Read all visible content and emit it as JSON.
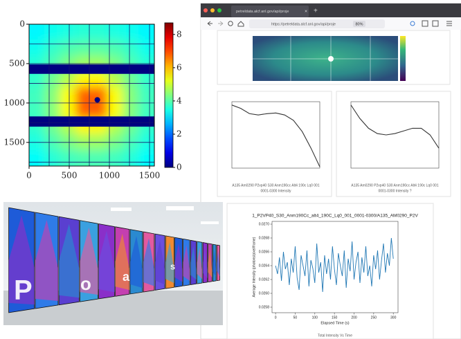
{
  "chart_data": [
    {
      "type": "heatmap",
      "colormap": "jet",
      "xlim": [
        0,
        1560
      ],
      "ylim": [
        0,
        1800
      ],
      "xticks": [
        0,
        500,
        1000,
        1500
      ],
      "yticks": [
        0,
        500,
        1000,
        1500
      ],
      "xgrid": [
        250,
        500,
        750,
        1000,
        1250,
        1500
      ],
      "ygrid": [
        250,
        500,
        750,
        1000,
        1250,
        1500,
        1750
      ],
      "z": [
        [
          3.2,
          3.4,
          3.5,
          3.6,
          3.6,
          3.5,
          3.4,
          3.2
        ],
        [
          3.4,
          3.7,
          3.9,
          4.0,
          4.0,
          3.9,
          3.7,
          3.4
        ],
        [
          3.6,
          3.9,
          4.3,
          4.6,
          4.6,
          4.3,
          3.9,
          3.6
        ],
        [
          3.7,
          4.2,
          4.8,
          5.5,
          5.5,
          4.8,
          4.2,
          3.7
        ],
        [
          3.8,
          4.4,
          5.4,
          6.8,
          6.8,
          5.4,
          4.4,
          3.8
        ],
        [
          3.8,
          4.4,
          5.4,
          6.8,
          6.8,
          5.4,
          4.4,
          3.8
        ],
        [
          3.7,
          4.2,
          4.8,
          5.5,
          5.5,
          4.8,
          4.2,
          3.7
        ],
        [
          3.5,
          3.9,
          4.3,
          4.6,
          4.6,
          4.3,
          3.9,
          3.5
        ],
        [
          3.3,
          3.6,
          3.8,
          3.9,
          3.9,
          3.8,
          3.6,
          3.3
        ]
      ],
      "mask_bands": [
        [
          510,
          630
        ],
        [
          1170,
          1300
        ]
      ],
      "mask_value": 0,
      "beam_stop": {
        "x": 850,
        "y": 960,
        "value": 0
      },
      "clim": [
        0,
        8.7
      ],
      "cticks": [
        0,
        2,
        4,
        6,
        8
      ]
    },
    {
      "type": "line",
      "color": "#333333",
      "x": [
        0,
        1,
        2,
        3,
        4,
        5,
        6,
        7,
        8,
        9,
        10
      ],
      "values": [
        0.95,
        0.9,
        0.82,
        0.8,
        0.82,
        0.83,
        0.8,
        0.72,
        0.55,
        0.3,
        0.02
      ],
      "xlim": [
        0,
        10
      ],
      "ylim": [
        0,
        1
      ],
      "caption": [
        "A135 Am0290 P2vp40 S30 Anm190cc Alt4 190c Lq0 001",
        "0001-0300 Intensity"
      ]
    },
    {
      "type": "line",
      "color": "#333333",
      "x": [
        0,
        1,
        2,
        3,
        4,
        5,
        6,
        7,
        8,
        9,
        10
      ],
      "values": [
        0.95,
        0.75,
        0.6,
        0.52,
        0.5,
        0.52,
        0.56,
        0.6,
        0.6,
        0.5,
        0.3
      ],
      "xlim": [
        0,
        10
      ],
      "ylim": [
        0,
        1
      ],
      "caption": [
        "A135 Am0290 P2vp40 S30 Anm190cc Alt4 190c Lq0 001",
        "0001-0300 Intensity ?"
      ]
    },
    {
      "type": "line",
      "color": "#1f77b4",
      "title": "1_P2VP40_S30_Anm190Cc_alt4_190C_Lq0_001_0001-0300/A135_AM0290_P2V",
      "xlabel": "Elapsed Time (s)",
      "ylabel": "Average Intensity (photons/pixel/frame)",
      "caption": "Total Intensity Vs Time",
      "x": [
        0,
        5,
        10,
        15,
        20,
        25,
        30,
        35,
        40,
        45,
        50,
        55,
        60,
        65,
        70,
        75,
        80,
        85,
        90,
        95,
        100,
        105,
        110,
        115,
        120,
        125,
        130,
        135,
        140,
        145,
        150,
        155,
        160,
        165,
        170,
        175,
        180,
        185,
        190,
        195,
        200,
        205,
        210,
        215,
        220,
        225,
        230,
        235,
        240,
        245,
        250,
        255,
        260,
        265,
        270,
        275,
        280,
        285,
        290,
        295,
        300
      ],
      "values": [
        0.0264,
        0.02628,
        0.02652,
        0.02618,
        0.0266,
        0.02635,
        0.02645,
        0.02612,
        0.0265,
        0.0263,
        0.02668,
        0.02622,
        0.02605,
        0.02655,
        0.0264,
        0.02625,
        0.02662,
        0.0261,
        0.02648,
        0.02636,
        0.02615,
        0.02672,
        0.0263,
        0.02645,
        0.02602,
        0.02655,
        0.02628,
        0.0265,
        0.0262,
        0.02668,
        0.02635,
        0.02612,
        0.02658,
        0.0264,
        0.02625,
        0.02662,
        0.02608,
        0.0265,
        0.02632,
        0.02675,
        0.0262,
        0.02645,
        0.0266,
        0.02615,
        0.02652,
        0.0263,
        0.02668,
        0.02625,
        0.0264,
        0.0261,
        0.02655,
        0.02635,
        0.02662,
        0.0262,
        0.02648,
        0.02672,
        0.0263,
        0.02658,
        0.0264,
        0.0268,
        0.0265
      ],
      "xlim": [
        -9,
        312
      ],
      "ylim": [
        0.02572,
        0.02704
      ],
      "xticks": [
        0,
        50,
        100,
        150,
        200,
        250,
        300
      ],
      "yticks": [
        0.0258,
        {
          "value": 0.026,
          "label": "0.0260"
        },
        0.0262,
        0.0264,
        0.0266,
        0.0268,
        {
          "value": 0.027,
          "label": "0.0270"
        }
      ]
    }
  ],
  "browser": {
    "tab": "petreldata.alcf.anl.gov/api/proje",
    "url": "https://petreldata.alcf.anl.gov/api/proje",
    "zoom": "80%"
  },
  "photo": {
    "letters": [
      "P",
      "o",
      "a",
      "s"
    ]
  }
}
